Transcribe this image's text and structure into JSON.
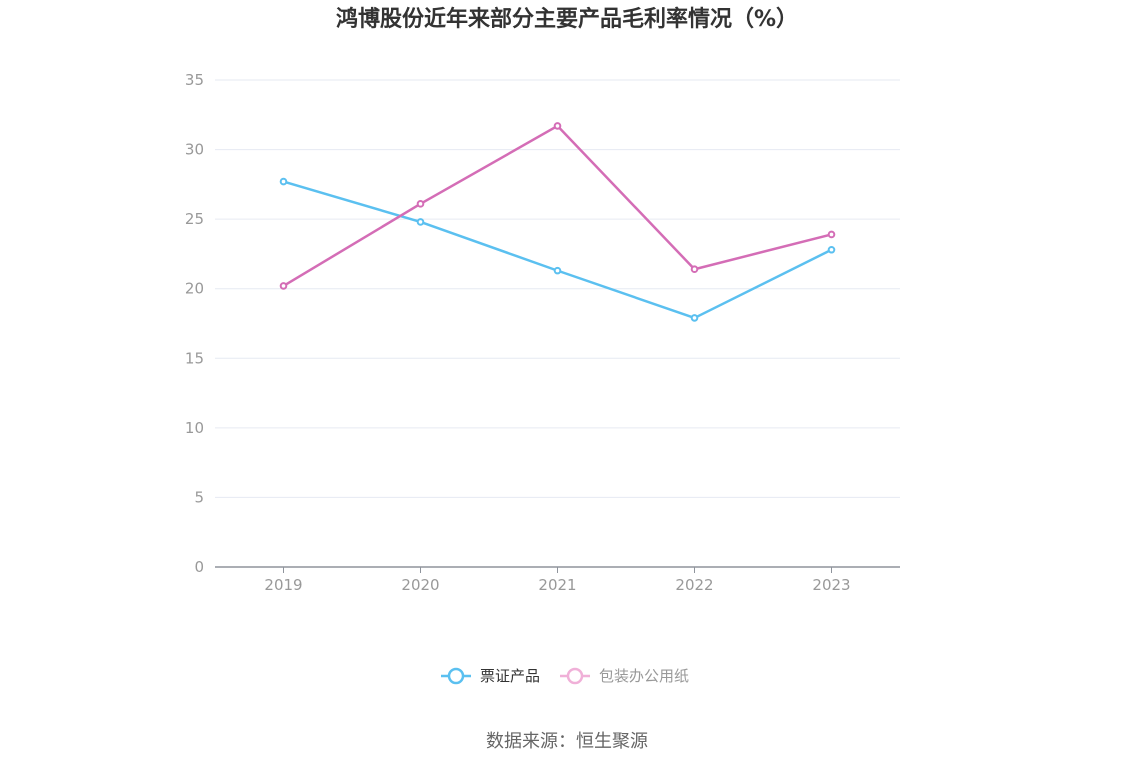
{
  "chart_data": {
    "type": "line",
    "title": "鸿博股份近年来部分主要产品毛利率情况（%）",
    "x": [
      "2019",
      "2020",
      "2021",
      "2022",
      "2023"
    ],
    "ylim": [
      0,
      35
    ],
    "yticks": [
      0,
      5,
      10,
      15,
      20,
      25,
      30,
      35
    ],
    "grid": true,
    "legend_position": "bottom",
    "series": [
      {
        "name": "票证产品",
        "color": "#5bc0f0",
        "values": [
          27.7,
          24.8,
          21.3,
          17.9,
          22.8
        ]
      },
      {
        "name": "包装办公用纸",
        "color": "#d46db6",
        "values": [
          20.2,
          26.1,
          31.7,
          21.4,
          23.9
        ]
      }
    ]
  },
  "legend_text_colors": [
    "#333333",
    "#999999"
  ],
  "legend_marker_colors": [
    "#5bc0f0",
    "#f0b0d8"
  ],
  "source": "数据来源：恒生聚源"
}
